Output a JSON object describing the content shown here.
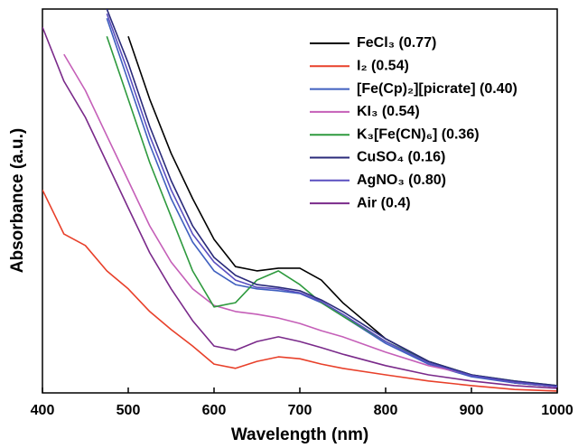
{
  "chart_data": {
    "type": "line",
    "xlabel": "Wavelength (nm)",
    "ylabel": "Absorbance (a.u.)",
    "x": [
      400,
      425,
      450,
      475,
      500,
      525,
      550,
      575,
      600,
      625,
      650,
      675,
      700,
      725,
      750,
      800,
      850,
      900,
      950,
      1000
    ],
    "xlim": [
      400,
      1000
    ],
    "xticks": [
      400,
      500,
      600,
      700,
      800,
      900,
      1000
    ],
    "ylim": [
      0,
      100
    ],
    "legend": "upper right",
    "series": [
      {
        "name": "FeCl₃ (0.77)",
        "color": "#000000",
        "values": [
          null,
          null,
          null,
          null,
          92.9,
          76.5,
          62.4,
          50.6,
          40,
          32.9,
          31.8,
          32.5,
          32.5,
          29.4,
          23.5,
          14.1,
          8.2,
          4.7,
          2.6,
          1.6
        ]
      },
      {
        "name": "I₂ (0.54)",
        "color": "#e8402a",
        "values": [
          52.9,
          41.4,
          38.4,
          31.8,
          27.1,
          21.2,
          16.5,
          12.2,
          7.5,
          6.4,
          8.2,
          9.4,
          8.9,
          7.5,
          6.4,
          4.7,
          3.1,
          1.9,
          0.9,
          0.5
        ]
      },
      {
        "name": "[Fe(Cp)₂][picrate] (0.40)",
        "color": "#3f5fbf",
        "values": [
          null,
          null,
          null,
          97.6,
          81.2,
          64.7,
          50.6,
          39.3,
          31.8,
          28.2,
          27.1,
          26.6,
          25.9,
          23.5,
          20,
          12.9,
          7.5,
          4.2,
          2.6,
          1.6
        ]
      },
      {
        "name": "KI₃ (0.54)",
        "color": "#c55fb8",
        "values": [
          null,
          88.2,
          78.8,
          67,
          55.3,
          43.5,
          34.1,
          27.1,
          22.8,
          21.2,
          20.5,
          19.5,
          18.1,
          16.2,
          14.6,
          10.6,
          7.1,
          4.7,
          2.8,
          1.6
        ]
      },
      {
        "name": "K₃[Fe(CN)₆] (0.36)",
        "color": "#2e9a3e",
        "values": [
          null,
          null,
          null,
          92.9,
          76.5,
          60,
          45.9,
          31.8,
          22.4,
          23.5,
          29.4,
          31.8,
          28.2,
          23.5,
          20,
          13.4,
          8.2,
          4.7,
          3.1,
          1.9
        ]
      },
      {
        "name": "CuSO₄ (0.16)",
        "color": "#2a2a7a",
        "values": [
          null,
          null,
          null,
          100,
          85.9,
          69.4,
          55.3,
          43.5,
          35.3,
          30.6,
          28.2,
          27.5,
          26.6,
          24.2,
          21.2,
          14.1,
          8.2,
          4.7,
          3.1,
          1.9
        ]
      },
      {
        "name": "AgNO₃ (0.80)",
        "color": "#5a4fc0",
        "values": [
          null,
          null,
          null,
          98.8,
          83.5,
          67,
          52.9,
          41.4,
          34.1,
          29.4,
          27.5,
          27.1,
          26.1,
          23.8,
          20.5,
          13.4,
          7.8,
          4.5,
          2.8,
          1.6
        ]
      },
      {
        "name": "Air (0.4)",
        "color": "#7a2a8a",
        "values": [
          95.3,
          81.2,
          71.8,
          60,
          48.2,
          36.5,
          27.1,
          18.8,
          12.2,
          11.1,
          13.4,
          14.6,
          13.4,
          11.8,
          10.1,
          7.1,
          4.7,
          3.1,
          1.9,
          1.2
        ]
      }
    ]
  }
}
